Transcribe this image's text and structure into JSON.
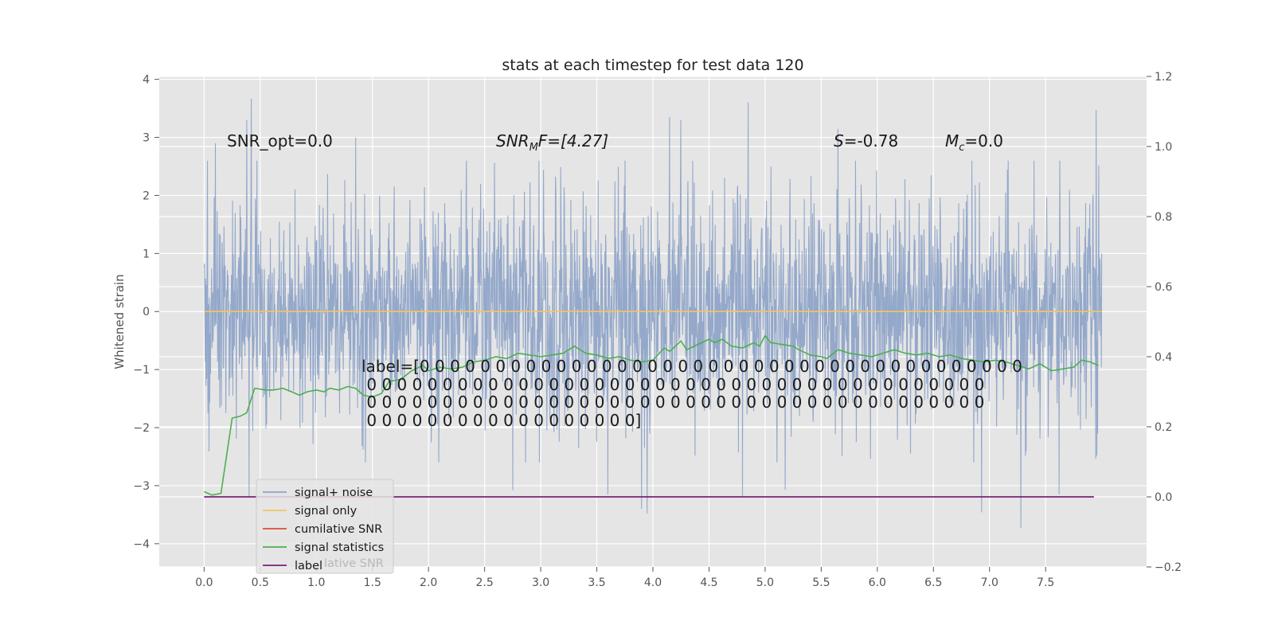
{
  "chart_data": {
    "type": "line",
    "title": "stats at each timestep for test data 120",
    "ylabel": "Whitened strain",
    "xlabel": "",
    "xlim": [
      -0.4,
      8.4
    ],
    "ylim": [
      -4.4,
      4.05
    ],
    "y2lim": [
      -0.2,
      1.2
    ],
    "grid": true,
    "legend_position": "lower-left",
    "x_ticks": [
      "0.0",
      "0.5",
      "1.0",
      "1.5",
      "2.0",
      "2.5",
      "3.0",
      "3.5",
      "4.0",
      "4.5",
      "5.0",
      "5.5",
      "6.0",
      "6.5",
      "7.0",
      "7.5"
    ],
    "y_ticks": [
      "4",
      "3",
      "2",
      "1",
      "0",
      "−1",
      "−2",
      "−3",
      "−4"
    ],
    "y2_ticks": [
      "1.2",
      "1.0",
      "0.8",
      "0.6",
      "0.4",
      "0.2",
      "0.0",
      "−0.2"
    ],
    "annotations": {
      "snr_opt": "SNR_opt=0.0",
      "snr_mf_sym": "SNR",
      "snr_mf_sub": "M",
      "snr_mf_rest": "F=[4.27]",
      "s_sym": "S",
      "s_rest": "=-0.78",
      "mc_sym": "M",
      "mc_sub": "c",
      "mc_rest": "=0.0"
    },
    "label_text": [
      "label=[0 0 0 0 0 0 0 0 0 0 0 0 0 0 0 0 0 0 0 0 0 0 0 0 0 0 0 0 0 0 0 0 0 0 0 0 0 0 0 0",
      " 0 0 0 0 0 0 0 0 0 0 0 0 0 0 0 0 0 0 0 0 0 0 0 0 0 0 0 0 0 0 0 0 0 0 0 0 0 0 0 0 0",
      " 0 0 0 0 0 0 0 0 0 0 0 0 0 0 0 0 0 0 0 0 0 0 0 0 0 0 0 0 0 0 0 0 0 0 0 0 0 0 0 0 0",
      " 0 0 0 0 0 0 0 0 0 0 0 0 0 0 0 0 0 0]"
    ],
    "legend": [
      "signal+ noise",
      "signal only",
      "cumilative SNR",
      "signal statistics",
      "label"
    ],
    "legend_ghost_text": "lative SNR",
    "colors": {
      "noise": "#8fa4c8",
      "signal_only": "#f2c75c",
      "cumulative_snr": "#e24a33",
      "signal_statistics": "#4caf50",
      "label": "#7b1e7a",
      "background": "#e5e5e5",
      "grid": "#ffffff"
    },
    "series": [
      {
        "name": "signal+ noise",
        "axis": "left",
        "style": "dense-noise",
        "x_range": [
          0.0,
          8.0
        ],
        "typical_range": [
          -1.8,
          1.8
        ],
        "spikes": [
          {
            "x": 0.42,
            "y": 3.67
          },
          {
            "x": 0.38,
            "y": 3.3
          },
          {
            "x": 2.75,
            "y": 3.2
          },
          {
            "x": 4.85,
            "y": 3.6
          },
          {
            "x": 4.15,
            "y": 3.35
          },
          {
            "x": 4.25,
            "y": 3.3
          },
          {
            "x": 5.65,
            "y": 3.15
          },
          {
            "x": 7.95,
            "y": 3.47
          },
          {
            "x": 1.35,
            "y": 3.0
          },
          {
            "x": 0.1,
            "y": 2.9
          },
          {
            "x": 3.95,
            "y": -3.48
          },
          {
            "x": 3.9,
            "y": -3.4
          },
          {
            "x": 6.93,
            "y": -3.46
          },
          {
            "x": 7.28,
            "y": -3.73
          },
          {
            "x": 4.8,
            "y": -3.18
          },
          {
            "x": 2.75,
            "y": -3.08
          },
          {
            "x": 0.4,
            "y": -3.2
          },
          {
            "x": 3.6,
            "y": -3.15
          },
          {
            "x": 7.62,
            "y": -3.15
          },
          {
            "x": 5.18,
            "y": -3.07
          }
        ]
      },
      {
        "name": "signal only",
        "axis": "left",
        "x": [
          0.0,
          8.0
        ],
        "y": [
          0.0,
          0.0
        ]
      },
      {
        "name": "cumilative SNR",
        "axis": "right",
        "x": [],
        "y": []
      },
      {
        "name": "signal statistics",
        "axis": "right",
        "x": [
          0.0,
          0.07,
          0.15,
          0.25,
          0.32,
          0.38,
          0.45,
          0.55,
          0.62,
          0.7,
          0.78,
          0.85,
          0.92,
          1.0,
          1.07,
          1.12,
          1.2,
          1.28,
          1.35,
          1.42,
          1.5,
          1.58,
          1.65,
          1.75,
          1.85,
          1.95,
          2.0,
          2.1,
          2.2,
          2.3,
          2.4,
          2.5,
          2.6,
          2.7,
          2.8,
          2.9,
          3.0,
          3.1,
          3.2,
          3.3,
          3.4,
          3.5,
          3.6,
          3.7,
          3.8,
          3.9,
          4.0,
          4.1,
          4.15,
          4.25,
          4.3,
          4.4,
          4.5,
          4.55,
          4.62,
          4.7,
          4.8,
          4.9,
          4.95,
          5.0,
          5.05,
          5.15,
          5.25,
          5.3,
          5.4,
          5.5,
          5.55,
          5.65,
          5.75,
          5.85,
          5.95,
          6.0,
          6.05,
          6.15,
          6.25,
          6.35,
          6.45,
          6.55,
          6.65,
          6.75,
          6.85,
          6.95,
          7.05,
          7.15,
          7.25,
          7.35,
          7.45,
          7.55,
          7.65,
          7.75,
          7.82,
          7.9,
          7.97
        ],
        "y": [
          0.015,
          0.005,
          0.01,
          0.225,
          0.23,
          0.24,
          0.31,
          0.305,
          0.305,
          0.31,
          0.3,
          0.29,
          0.3,
          0.305,
          0.3,
          0.31,
          0.305,
          0.315,
          0.31,
          0.29,
          0.285,
          0.295,
          0.33,
          0.335,
          0.36,
          0.375,
          0.36,
          0.37,
          0.365,
          0.37,
          0.385,
          0.39,
          0.4,
          0.395,
          0.41,
          0.405,
          0.4,
          0.405,
          0.41,
          0.43,
          0.41,
          0.405,
          0.395,
          0.4,
          0.39,
          0.385,
          0.39,
          0.425,
          0.415,
          0.445,
          0.42,
          0.435,
          0.45,
          0.44,
          0.45,
          0.43,
          0.425,
          0.44,
          0.43,
          0.46,
          0.44,
          0.435,
          0.43,
          0.42,
          0.405,
          0.4,
          0.395,
          0.42,
          0.41,
          0.405,
          0.4,
          0.405,
          0.41,
          0.42,
          0.41,
          0.405,
          0.41,
          0.4,
          0.405,
          0.395,
          0.39,
          0.385,
          0.39,
          0.385,
          0.375,
          0.365,
          0.38,
          0.36,
          0.365,
          0.37,
          0.39,
          0.385,
          0.375
        ]
      },
      {
        "name": "label",
        "axis": "right",
        "x": [
          0.0,
          7.93
        ],
        "y": [
          0.0,
          0.0
        ]
      }
    ]
  }
}
